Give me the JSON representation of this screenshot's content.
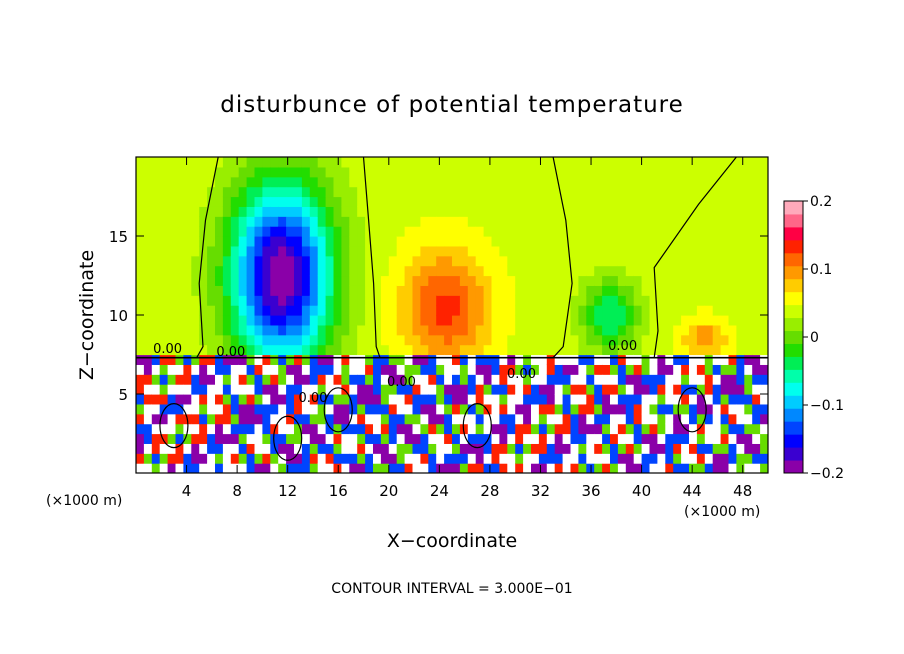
{
  "chart_data": {
    "type": "heatmap",
    "title": "disturbunce of potential temperature",
    "xlabel": "X−coordinate",
    "ylabel": "Z−coordinate",
    "x_unit": "(×1000 m)",
    "x_unit_right": "(×1000 m)",
    "xlim": [
      0,
      50
    ],
    "ylim": [
      0,
      20
    ],
    "xticks": [
      4,
      8,
      12,
      16,
      20,
      24,
      28,
      32,
      36,
      40,
      44,
      48
    ],
    "yticks": [
      5,
      10,
      15
    ],
    "contour_interval": "CONTOUR INTERVAL = 3.000E−01",
    "contour_labels": [
      "0.00",
      "0.00",
      "0.00",
      "0.00",
      "0.00",
      "0.00"
    ],
    "colorbar": {
      "range": [
        -0.2,
        0.2
      ],
      "ticks": [
        "0.2",
        "0.1",
        "0",
        "−0.1",
        "−0.2"
      ],
      "tick_values": [
        0.2,
        0.1,
        0,
        -0.1,
        -0.2
      ],
      "colors": [
        "#8a00a8",
        "#3a00d0",
        "#0000ff",
        "#0044ff",
        "#0088ff",
        "#00ccff",
        "#00ffee",
        "#00ffaa",
        "#00ee55",
        "#22dd00",
        "#66dd00",
        "#99ee00",
        "#ccff00",
        "#ffff00",
        "#ffcc00",
        "#ff9900",
        "#ff6600",
        "#ff2200",
        "#ff0044",
        "#ff6688",
        "#ffaabb"
      ]
    },
    "background_value": 0.04,
    "features": [
      {
        "x": 11.5,
        "z": 12.5,
        "rx": 4.5,
        "rz": 6.5,
        "value": -0.2
      },
      {
        "x": 24.5,
        "z": 10.5,
        "rx": 4.0,
        "rz": 4.2,
        "value": 0.13
      },
      {
        "x": 37.5,
        "z": 10.0,
        "rx": 2.5,
        "rz": 2.5,
        "value": -0.05
      },
      {
        "x": 45.0,
        "z": 8.5,
        "rx": 2.0,
        "rz": 1.5,
        "value": 0.1
      }
    ]
  }
}
